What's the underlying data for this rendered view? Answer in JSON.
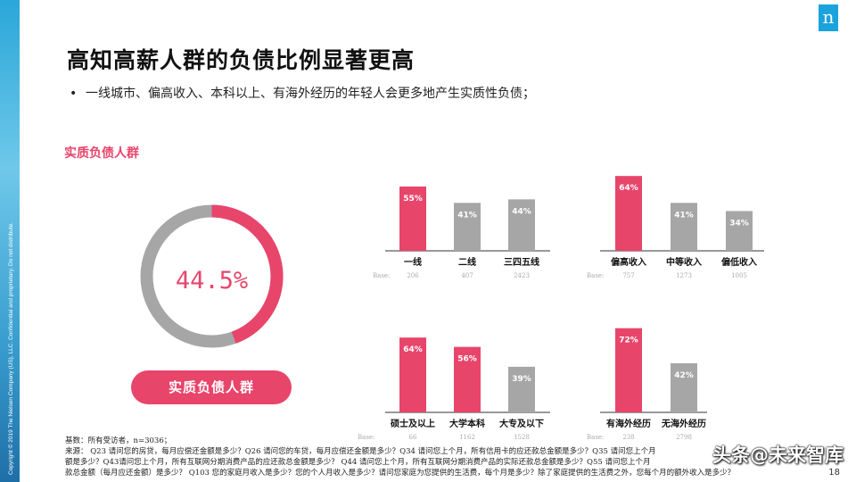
{
  "slide": {
    "title": "高知高薪人群的负债比例显著更高",
    "bullet": "一线城市、偏高收入、本科以上、有海外经历的年轻人会更多地产生实质性负债；",
    "bullet_marker": "•",
    "section_label": "实质负债人群",
    "pill_label": "实质负债人群",
    "sidebar_text": "Copyright © 2019 The Nielsen Company (US), LLC. Confidential and proprietary. Do not distribute.",
    "logo_letter": "n",
    "page_number": "18",
    "watermark": "头条@未来智库",
    "footnotes": [
      "基数：所有受访者，n=3036；",
      "来源： Q23 请问您的房贷，每月应偿还金额是多少？Q26 请问您的车贷，每月应偿还金额是多少？Q34 请问您上个月，所有信用卡的应还款总金额是多少？Q35 请问您上个月",
      "额是多少？Q43请问您上个月，所有互联网分期消费产品的应还款总金额是多少？ Q44 请问您上个月，所有互联网分期消费产品的实际还款总金额是多少？Q55 请问您上个月",
      "款总金额（每月应还金额）是多少？ Q103 您的家庭月收入是多少？您的个人月收入是多少？请问您家庭为您提供的生活费，每个月是多少？除了家庭提供的生活费之外，您每个月的额外收入是多少？"
    ],
    "colors": {
      "accent": "#e8456b",
      "gray": "#a6a6a7",
      "logo": "#1aa3dc"
    }
  },
  "chart_data": [
    {
      "type": "pie",
      "name": "donut",
      "center_label": "44.5%",
      "values": [
        44.5,
        55.5
      ],
      "colors": [
        "#e8456b",
        "#a6a6a7"
      ]
    },
    {
      "type": "bar",
      "categories": [
        "一线",
        "二线",
        "三四五线"
      ],
      "values": [
        55,
        41,
        44
      ],
      "labels": [
        "55%",
        "41%",
        "44%"
      ],
      "highlight": [
        true,
        false,
        false
      ],
      "base_label": "Base:",
      "bases": [
        "206",
        "407",
        "2423"
      ]
    },
    {
      "type": "bar",
      "categories": [
        "偏高收入",
        "中等收入",
        "偏低收入"
      ],
      "values": [
        64,
        41,
        34
      ],
      "labels": [
        "64%",
        "41%",
        "34%"
      ],
      "highlight": [
        true,
        false,
        false
      ],
      "base_label": "Base:",
      "bases": [
        "757",
        "1273",
        "1005"
      ]
    },
    {
      "type": "bar",
      "categories": [
        "硕士及以上",
        "大学本科",
        "大专及以下"
      ],
      "values": [
        64,
        56,
        39
      ],
      "labels": [
        "64%",
        "56%",
        "39%"
      ],
      "highlight": [
        true,
        true,
        false
      ],
      "base_label": "Base:",
      "bases": [
        "66",
        "1162",
        "1528"
      ]
    },
    {
      "type": "bar",
      "categories": [
        "有海外经历",
        "无海外经历"
      ],
      "values": [
        72,
        42
      ],
      "labels": [
        "72%",
        "42%"
      ],
      "highlight": [
        true,
        false
      ],
      "base_label": "Base:",
      "bases": [
        "238",
        "2798"
      ]
    }
  ]
}
